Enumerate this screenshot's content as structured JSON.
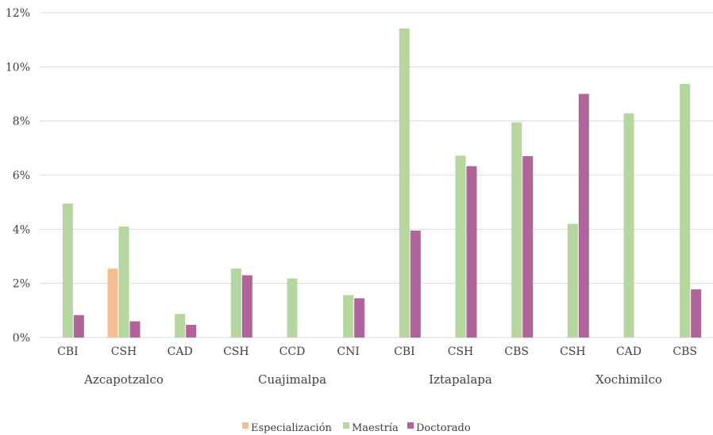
{
  "chart_data": {
    "type": "bar",
    "ylim": [
      0,
      12
    ],
    "y_ticks": [
      "0%",
      "2%",
      "4%",
      "6%",
      "8%",
      "10%",
      "12%"
    ],
    "y_tick_values": [
      0,
      2,
      4,
      6,
      8,
      10,
      12
    ],
    "grid": true,
    "legend_position": "bottom",
    "groups": [
      {
        "name": "Azcapotzalco",
        "categories": [
          "CBI",
          "CSH",
          "CAD"
        ]
      },
      {
        "name": "Cuajimalpa",
        "categories": [
          "CSH",
          "CCD",
          "CNI"
        ]
      },
      {
        "name": "Iztapalapa",
        "categories": [
          "CBI",
          "CSH",
          "CBS"
        ]
      },
      {
        "name": "Xochimilco",
        "categories": [
          "CSH",
          "CAD",
          "CBS"
        ]
      }
    ],
    "categories": [
      "CBI",
      "CSH",
      "CAD",
      "CSH",
      "CCD",
      "CNI",
      "CBI",
      "CSH",
      "CBS",
      "CSH",
      "CAD",
      "CBS"
    ],
    "series": [
      {
        "name": "Especialización",
        "color": "#f4bf92",
        "values": [
          0,
          2.55,
          0,
          0,
          0,
          0,
          0,
          0,
          0,
          0,
          0,
          0
        ]
      },
      {
        "name": "Maestría",
        "color": "#b5d69e",
        "values": [
          4.95,
          4.1,
          0.87,
          2.55,
          2.18,
          1.57,
          11.42,
          6.72,
          7.95,
          4.2,
          8.28,
          9.37
        ]
      },
      {
        "name": "Doctorado",
        "color": "#b0649a",
        "values": [
          0.83,
          0.6,
          0.47,
          2.3,
          0,
          1.45,
          3.95,
          6.33,
          6.7,
          9.0,
          0,
          1.78
        ]
      }
    ]
  }
}
